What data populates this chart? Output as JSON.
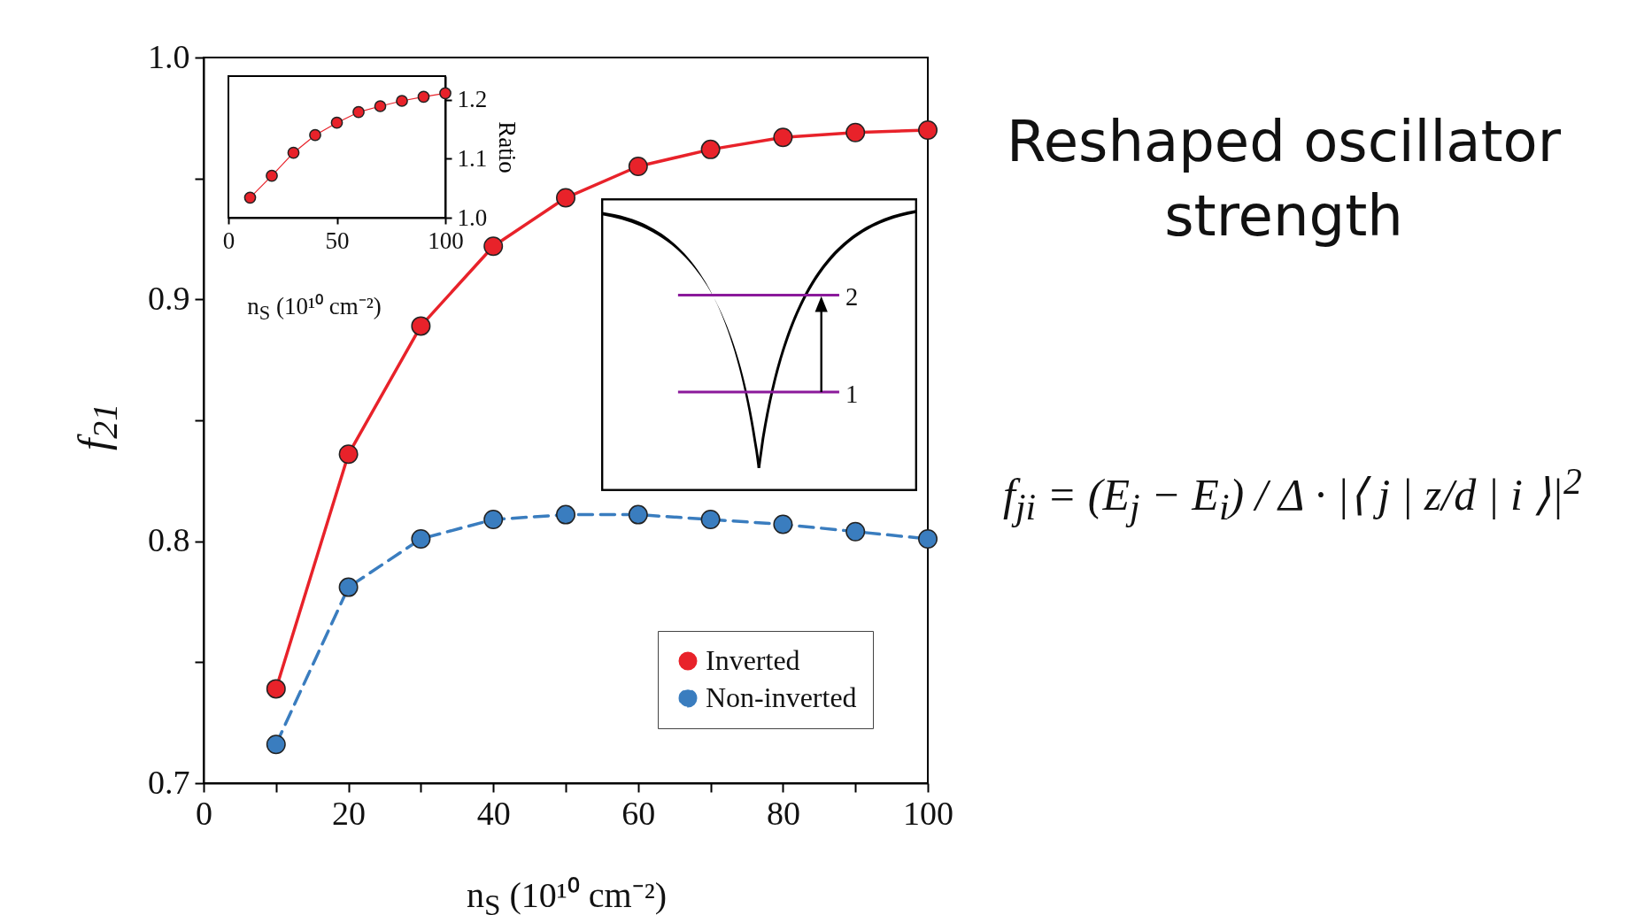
{
  "chart_data": [
    {
      "type": "line",
      "xlabel": "n$_{S}$ (10¹⁰ cm⁻²)",
      "ylabel": "f$_{21}$",
      "x": [
        10,
        20,
        30,
        40,
        50,
        60,
        70,
        80,
        90,
        100
      ],
      "series": [
        {
          "name": "Inverted",
          "color": "#e8222a",
          "line_style": "solid",
          "values": [
            0.739,
            0.836,
            0.889,
            0.922,
            0.942,
            0.955,
            0.962,
            0.967,
            0.969,
            0.97
          ]
        },
        {
          "name": "Non-inverted",
          "color": "#3a7dbf",
          "line_style": "dashed",
          "values": [
            0.716,
            0.781,
            0.801,
            0.809,
            0.811,
            0.811,
            0.809,
            0.807,
            0.804,
            0.801
          ]
        }
      ],
      "xlim": [
        0,
        100
      ],
      "ylim": [
        0.7,
        1.0
      ],
      "xticks": [
        0,
        {
          "value": 10,
          "label": null
        },
        20,
        {
          "value": 30,
          "label": null
        },
        40,
        {
          "value": 50,
          "label": null
        },
        60,
        {
          "value": 70,
          "label": null
        },
        80,
        {
          "value": 90,
          "label": null
        },
        100
      ],
      "yticks": [
        0.7,
        {
          "value": 0.75,
          "label": null
        },
        0.8,
        {
          "value": 0.85,
          "label": null
        },
        0.9,
        {
          "value": 0.95,
          "label": null
        },
        {
          "value": 1,
          "label": "1.0"
        }
      ],
      "marker": "circle",
      "legend": "bottom right",
      "grid": false,
      "annotations": [
        "1",
        "2",
        "f$_{ji}$ = (E$_{j}$ − E$_{i}$) / Δ · |⟨ j | z/d | i ⟩|$^{2}$",
        "Reshaped oscillator strength"
      ]
    },
    {
      "type": "line",
      "xlabel": "n$_{S}$ (10¹⁰ cm⁻²)",
      "ylabel": "Ratio",
      "x": [
        10,
        20,
        30,
        40,
        50,
        60,
        70,
        80,
        90,
        100
      ],
      "series": [
        {
          "color": "#e8222a",
          "line_style": "solid",
          "values": [
            1.034,
            1.071,
            1.11,
            1.14,
            1.161,
            1.179,
            1.189,
            1.198,
            1.205,
            1.211
          ]
        }
      ],
      "xlim": [
        0,
        100
      ],
      "ylim": [
        1.0,
        1.24
      ],
      "xticks": [
        0,
        50,
        100
      ],
      "yticks": [
        {
          "value": 1,
          "label": "1.0"
        },
        1.1,
        1.2
      ],
      "marker": "circle",
      "grid": false
    }
  ]
}
